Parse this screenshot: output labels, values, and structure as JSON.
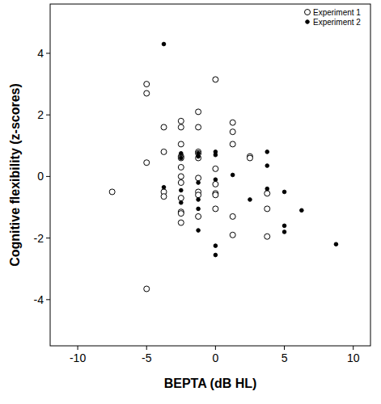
{
  "chart_data": {
    "type": "scatter",
    "x_label": "BEPTA (dB HL)",
    "y_label": "Cognitive flexibility (z-scores)",
    "xlim": [
      -12,
      11.25
    ],
    "xticks": [
      -10,
      -5,
      0,
      5,
      10
    ],
    "ylim": [
      -5.5,
      5.6
    ],
    "yticks": [
      -4,
      -2,
      0,
      2,
      4
    ],
    "legend": "top-right",
    "series": [
      {
        "name": "Experiment 1",
        "color": "#000000",
        "marker": "open-circle",
        "x": [
          -7.5,
          -5,
          -5,
          -5,
          -5,
          -3.75,
          -3.75,
          -3.75,
          -3.75,
          -2.5,
          -2.5,
          -2.5,
          -2.5,
          -2.5,
          -2.5,
          -2.5,
          -2.5,
          -2.5,
          -2.5,
          -2.5,
          -2.5,
          -1.25,
          -1.25,
          -1.25,
          -1.25,
          -1.25,
          -1.25,
          -1.25,
          -1.25,
          -1.25,
          0,
          0,
          0,
          0,
          0,
          0,
          1.25,
          1.25,
          1.25,
          1.25,
          1.25,
          2.5,
          2.5,
          3.75,
          3.75,
          3.75
        ],
        "values": [
          -0.5,
          3.0,
          2.7,
          0.45,
          -3.65,
          1.6,
          0.8,
          -0.5,
          -0.65,
          1.8,
          1.6,
          1.05,
          0.65,
          0.6,
          0.3,
          0.0,
          -0.2,
          -0.7,
          -1.15,
          -1.2,
          -1.5,
          2.1,
          1.6,
          0.8,
          0.75,
          0.6,
          -0.05,
          -0.5,
          -0.6,
          -1.3,
          3.15,
          0.25,
          -0.25,
          -0.55,
          -0.6,
          -1.05,
          1.75,
          1.45,
          1.05,
          -1.3,
          -1.9,
          0.65,
          0.6,
          -0.55,
          -1.05,
          -1.95
        ]
      },
      {
        "name": "Experiment 2",
        "color": "#000000",
        "marker": "filled-circle",
        "x": [
          -3.75,
          -3.75,
          -2.5,
          -2.5,
          -2.5,
          -2.5,
          -1.25,
          -1.25,
          -1.25,
          -1.25,
          -1.25,
          -1.25,
          0,
          0,
          0,
          0,
          0,
          1.25,
          2.5,
          3.75,
          3.75,
          3.75,
          5,
          5,
          5,
          6.25,
          8.75
        ],
        "values": [
          4.3,
          -0.35,
          0.75,
          0.6,
          -0.45,
          -0.85,
          0.75,
          0.65,
          -0.2,
          -0.75,
          -1.05,
          -1.75,
          0.8,
          0.7,
          -0.1,
          -2.25,
          -2.55,
          0.05,
          -0.75,
          0.8,
          0.35,
          -0.4,
          -0.5,
          -1.6,
          -1.8,
          -1.1,
          -2.2
        ]
      }
    ]
  }
}
